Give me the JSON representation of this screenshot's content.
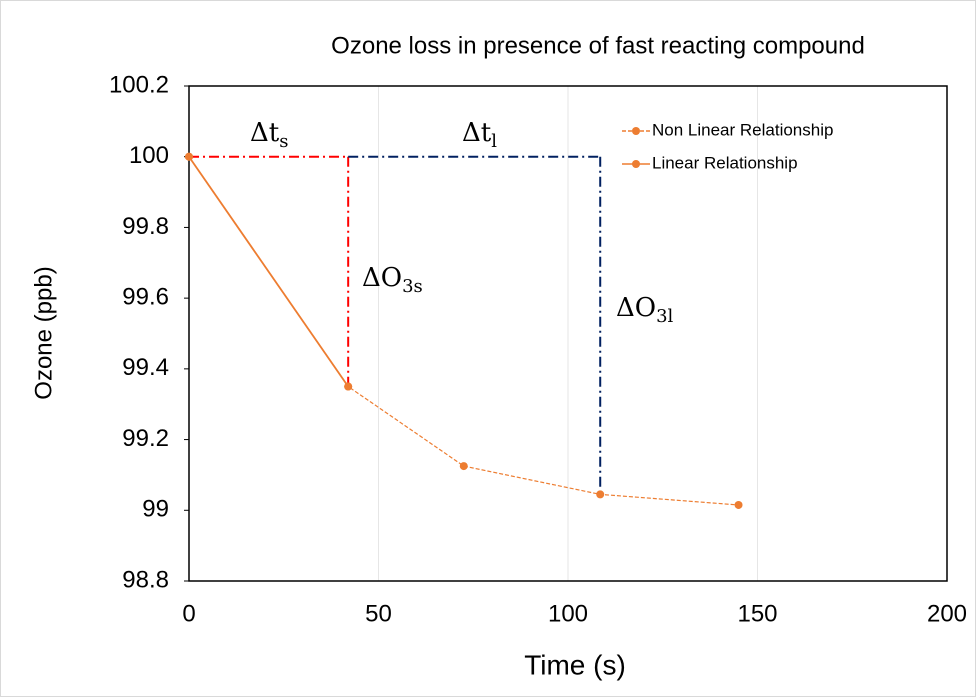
{
  "chart_data": {
    "type": "line",
    "title": "Ozone loss in presence of fast reacting compound",
    "x_label": "Time (s)",
    "y_label": "Ozone (ppb)",
    "xlim": [
      0,
      200
    ],
    "xticks": [
      0,
      50,
      100,
      150,
      200
    ],
    "ylim": [
      98.8,
      100.2
    ],
    "yticks": [
      98.8,
      99,
      99.2,
      99.4,
      99.6,
      99.8,
      100,
      100.2
    ],
    "grid": "x",
    "series": [
      {
        "name": "Non Linear Relationship",
        "color": "#ed7d31",
        "dashed": true,
        "x": [
          0,
          42,
          72.5,
          108.5,
          145
        ],
        "values": [
          100,
          99.35,
          99.125,
          99.045,
          99.015
        ]
      },
      {
        "name": "Linear Relationship",
        "color": "#ed7d31",
        "dashed": false,
        "x": [
          0,
          42
        ],
        "values": [
          100,
          99.35
        ]
      }
    ],
    "annotations": [
      {
        "text": "Δt",
        "sub": "s",
        "color": "#ff0000"
      },
      {
        "text": "Δt",
        "sub": "l",
        "color": "#002060"
      },
      {
        "text": "ΔO",
        "sub": "3s",
        "color": "#ff0000"
      },
      {
        "text": "ΔO",
        "sub": "3l",
        "color": "#002060"
      }
    ],
    "legend": "top-right"
  }
}
